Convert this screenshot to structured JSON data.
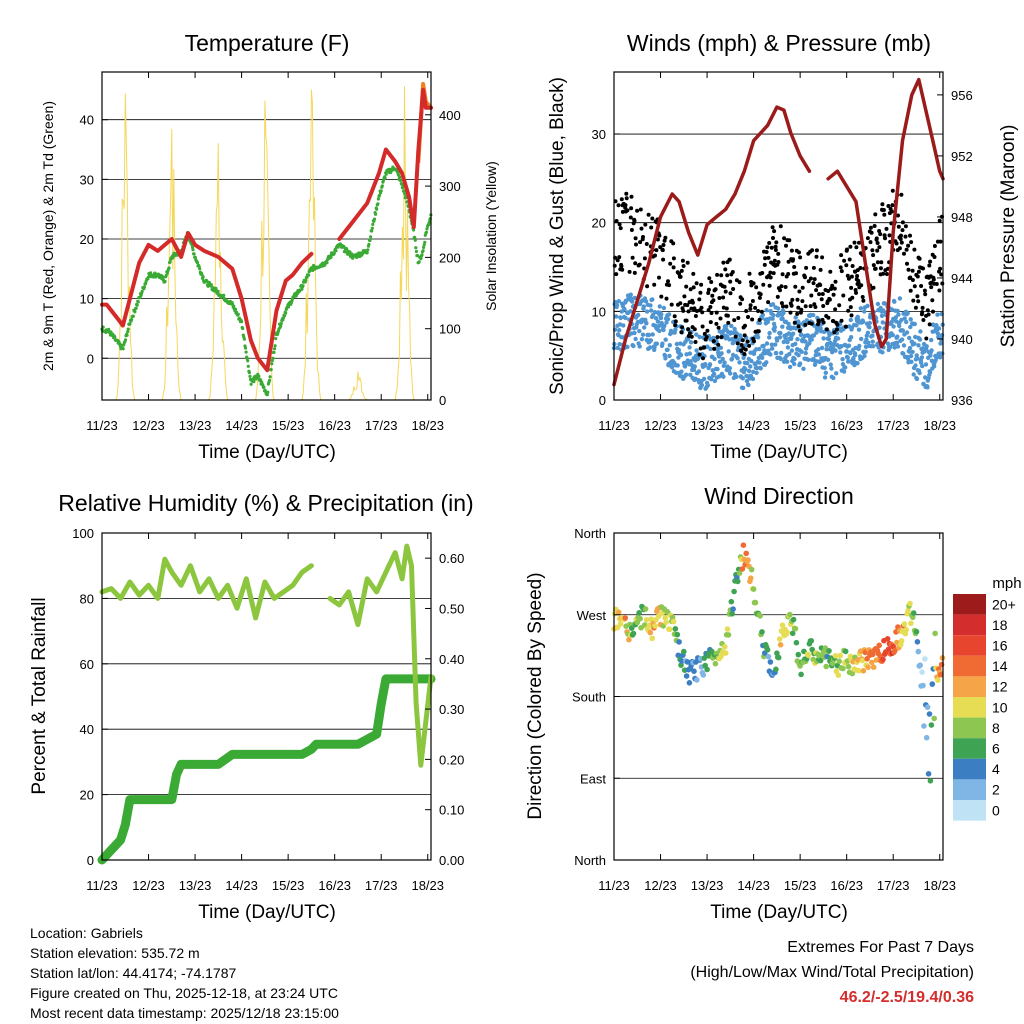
{
  "charts": [
    {
      "id": "temperature",
      "title": "Temperature (F)",
      "xlabel": "Time (Day/UTC)",
      "ylabel_left": "2m & 9m T (Red, Orange) & 2m Td (Green)",
      "ylabel_right": "Solar Insolation (Yellow)"
    },
    {
      "id": "winds",
      "title": "Winds (mph) & Pressure (mb)",
      "xlabel": "Time (Day/UTC)",
      "ylabel_left": "Sonic/Prop Wind & Gust (Blue, Black)",
      "ylabel_right": "Station Pressure (Maroon)"
    },
    {
      "id": "humidity",
      "title": "Relative Humidity (%) & Precipitation (in)",
      "xlabel": "Time (Day/UTC)",
      "ylabel_left": "Percent & Total Rainfall"
    },
    {
      "id": "direction",
      "title": "Wind Direction",
      "xlabel": "Time (Day/UTC)",
      "ylabel_left": "Direction (Colored By Speed)"
    }
  ],
  "chart_data": [
    {
      "type": "line",
      "title": "Temperature (F)",
      "xlabel": "Time (Day/UTC)",
      "ylabel": "2m & 9m T (Red, Orange) & 2m Td (Green)",
      "y2label": "Solar Insolation (Yellow)",
      "x_ticks": [
        "11/23",
        "12/23",
        "13/23",
        "14/23",
        "15/23",
        "16/23",
        "17/23",
        "18/23"
      ],
      "xlim": [
        11.0,
        18.07
      ],
      "ylim": [
        -7,
        48
      ],
      "y_ticks": [
        0,
        10,
        20,
        30,
        40
      ],
      "y2lim": [
        0,
        460
      ],
      "y2_ticks": [
        0,
        100,
        200,
        300,
        400
      ],
      "series": [
        {
          "name": "2m T",
          "color": "#d42a2a",
          "x": [
            11.0,
            11.1,
            11.3,
            11.45,
            11.6,
            11.8,
            12.0,
            12.2,
            12.35,
            12.5,
            12.7,
            12.85,
            13.0,
            13.2,
            13.5,
            13.8,
            14.0,
            14.2,
            14.35,
            14.55,
            14.75,
            14.95,
            15.1,
            15.3,
            15.5,
            15.8,
            16.1,
            16.4,
            16.7,
            16.95,
            17.1,
            17.3,
            17.45,
            17.6,
            17.7,
            17.8,
            17.9,
            17.96,
            18.07
          ],
          "y": [
            9,
            9,
            7,
            5.5,
            10,
            16,
            19,
            18,
            19,
            20,
            17,
            21,
            19,
            18,
            17,
            15,
            10,
            3,
            0,
            -2,
            8,
            13,
            14,
            16,
            17.5,
            null,
            20,
            23,
            26,
            31,
            35,
            33,
            31,
            27,
            22,
            35,
            45,
            42,
            42
          ]
        },
        {
          "name": "9m T",
          "color": "#f08020",
          "x": [
            17.8,
            17.9,
            17.96,
            18.07
          ],
          "y": [
            33,
            46,
            43,
            42
          ]
        },
        {
          "name": "2m Td",
          "color": "#3aaa35",
          "x": [
            11.0,
            11.15,
            11.3,
            11.45,
            11.6,
            11.8,
            12.0,
            12.2,
            12.35,
            12.5,
            12.7,
            12.85,
            13.0,
            13.2,
            13.5,
            13.8,
            14.0,
            14.2,
            14.35,
            14.55,
            14.75,
            14.95,
            15.1,
            15.3,
            15.5,
            15.8,
            16.1,
            16.4,
            16.7,
            16.95,
            17.1,
            17.3,
            17.45,
            17.6,
            17.7,
            17.8,
            17.9,
            17.96,
            18.07
          ],
          "y": [
            5,
            4.5,
            3,
            1.5,
            6,
            10,
            14,
            14,
            13,
            17,
            18,
            21,
            17,
            13,
            11,
            9,
            6,
            -4,
            -3,
            -6,
            4,
            8,
            10,
            12,
            15,
            16,
            19,
            17,
            18,
            27,
            31,
            32,
            29,
            25,
            21,
            16,
            18,
            21,
            24
          ]
        }
      ],
      "y2_series": {
        "name": "Solar Insolation",
        "color": "#f5d75a",
        "peaks": [
          {
            "day": 11.5,
            "value": 430
          },
          {
            "day": 12.5,
            "value": 380
          },
          {
            "day": 13.5,
            "value": 360
          },
          {
            "day": 14.5,
            "value": 420
          },
          {
            "day": 15.5,
            "value": 435
          },
          {
            "day": 16.5,
            "value": 40
          },
          {
            "day": 17.5,
            "value": 440
          }
        ]
      }
    },
    {
      "type": "scatter",
      "title": "Winds (mph) & Pressure (mb)",
      "xlabel": "Time (Day/UTC)",
      "ylabel": "Sonic/Prop Wind & Gust (Blue, Black)",
      "y2label": "Station Pressure (Maroon)",
      "x_ticks": [
        "11/23",
        "12/23",
        "13/23",
        "14/23",
        "15/23",
        "16/23",
        "17/23",
        "18/23"
      ],
      "xlim": [
        11.0,
        18.07
      ],
      "ylim": [
        0,
        37
      ],
      "y_ticks": [
        0,
        10,
        20,
        30
      ],
      "y2lim": [
        936,
        957.5
      ],
      "y2_ticks": [
        936,
        940,
        944,
        948,
        952,
        956
      ],
      "series": [
        {
          "name": "Wind",
          "color": "#4f95d1",
          "x": [
            11.0,
            11.3,
            11.6,
            12.0,
            12.3,
            12.6,
            12.9,
            13.2,
            13.5,
            13.8,
            14.1,
            14.4,
            14.7,
            15.0,
            15.3,
            15.6,
            15.9,
            16.2,
            16.5,
            16.8,
            17.1,
            17.4,
            17.7,
            18.07
          ],
          "y": [
            8,
            9,
            9,
            8,
            6,
            5,
            4,
            5,
            6,
            4,
            6,
            8,
            7,
            6,
            7,
            5,
            6,
            7,
            8,
            8,
            9,
            6,
            4,
            8
          ]
        },
        {
          "name": "Gust",
          "color": "#000000",
          "x": [
            11.0,
            11.3,
            11.6,
            12.0,
            12.3,
            12.6,
            12.9,
            13.2,
            13.5,
            13.8,
            14.1,
            14.4,
            14.7,
            15.0,
            15.3,
            15.6,
            15.9,
            16.2,
            16.5,
            16.8,
            17.1,
            17.4,
            17.7,
            18.07
          ],
          "y": [
            18,
            19,
            17,
            16,
            13,
            11,
            9,
            10,
            12,
            9,
            12,
            17,
            14,
            12,
            13,
            11,
            12,
            14,
            16,
            18,
            21,
            15,
            11,
            17
          ]
        },
        {
          "name": "Station Pressure",
          "color": "#9b1b1b",
          "x": [
            11.0,
            11.25,
            11.5,
            11.75,
            12.0,
            12.25,
            12.4,
            12.6,
            12.8,
            13.0,
            13.2,
            13.4,
            13.6,
            13.8,
            14.0,
            14.3,
            14.5,
            14.65,
            14.8,
            15.0,
            15.2,
            15.35,
            15.6,
            15.8,
            16.0,
            16.2,
            16.45,
            16.6,
            16.75,
            16.85,
            17.0,
            17.2,
            17.4,
            17.55,
            17.7,
            17.85,
            18.0,
            18.07
          ],
          "y": [
            937,
            940,
            942.5,
            945,
            948,
            949.5,
            949,
            947,
            945.5,
            947.5,
            948,
            948.5,
            949.5,
            951,
            953,
            954,
            955.2,
            955,
            953.5,
            952,
            951,
            null,
            950.5,
            951,
            950,
            949,
            944,
            941,
            939.5,
            940,
            947,
            953,
            956,
            957,
            955,
            953,
            951,
            950.5
          ]
        }
      ]
    },
    {
      "type": "line",
      "title": "Relative Humidity (%) & Precipitation (in)",
      "xlabel": "Time (Day/UTC)",
      "ylabel": "Percent & Total Rainfall",
      "x_ticks": [
        "11/23",
        "12/23",
        "13/23",
        "14/23",
        "15/23",
        "16/23",
        "17/23",
        "18/23"
      ],
      "xlim": [
        11.0,
        18.07
      ],
      "ylim": [
        0,
        100
      ],
      "y_ticks": [
        0,
        20,
        40,
        60,
        80,
        100
      ],
      "y2lim": [
        0,
        0.65
      ],
      "y2_ticks": [
        "0.00",
        "0.10",
        "0.20",
        "0.30",
        "0.40",
        "0.50",
        "0.60"
      ],
      "series": [
        {
          "name": "Relative Humidity",
          "color": "#8cc63f",
          "x": [
            11.0,
            11.2,
            11.4,
            11.6,
            11.8,
            12.0,
            12.2,
            12.35,
            12.5,
            12.7,
            12.9,
            13.1,
            13.3,
            13.5,
            13.7,
            13.9,
            14.1,
            14.3,
            14.5,
            14.7,
            14.9,
            15.1,
            15.3,
            15.5,
            15.7,
            15.9,
            16.1,
            16.3,
            16.5,
            16.7,
            16.9,
            17.1,
            17.3,
            17.45,
            17.55,
            17.65,
            17.75,
            17.85,
            18.07
          ],
          "y": [
            82,
            83,
            80,
            85,
            81,
            84,
            80,
            92,
            88,
            84,
            90,
            82,
            86,
            80,
            84,
            77,
            86,
            74,
            85,
            80,
            82,
            84,
            88,
            90,
            null,
            80,
            78,
            82,
            72,
            86,
            82,
            88,
            94,
            86,
            96,
            90,
            48,
            29,
            56
          ]
        },
        {
          "name": "Total Precipitation",
          "color": "#3aaa35",
          "axis": "y2",
          "x": [
            11.0,
            11.2,
            11.4,
            11.5,
            11.6,
            12.0,
            12.5,
            12.6,
            12.7,
            12.9,
            13.0,
            13.5,
            13.8,
            14.0,
            14.5,
            15.0,
            15.3,
            15.5,
            15.6,
            16.0,
            16.5,
            16.9,
            17.0,
            17.1,
            17.3,
            17.5,
            17.8,
            18.07
          ],
          "y": [
            0,
            0.02,
            0.04,
            0.07,
            0.12,
            0.12,
            0.12,
            0.17,
            0.19,
            0.19,
            0.19,
            0.19,
            0.21,
            0.21,
            0.21,
            0.21,
            0.21,
            0.22,
            0.23,
            0.23,
            0.23,
            0.25,
            0.31,
            0.36,
            0.36,
            0.36,
            0.36,
            0.36
          ]
        }
      ]
    },
    {
      "type": "scatter",
      "title": "Wind Direction",
      "xlabel": "Time (Day/UTC)",
      "ylabel": "Direction (Colored By Speed)",
      "x_ticks": [
        "11/23",
        "12/23",
        "13/23",
        "14/23",
        "15/23",
        "16/23",
        "17/23",
        "18/23"
      ],
      "xlim": [
        11.0,
        18.07
      ],
      "ylim": [
        0,
        360
      ],
      "y_ticks": [
        "North",
        "East",
        "South",
        "West",
        "North"
      ],
      "y_tick_values": [
        0,
        90,
        180,
        270,
        360
      ],
      "series": [
        {
          "name": "Direction",
          "x": [
            11.0,
            11.2,
            11.4,
            11.6,
            11.8,
            12.0,
            12.2,
            12.4,
            12.6,
            12.8,
            13.0,
            13.2,
            13.4,
            13.6,
            13.8,
            14.0,
            14.2,
            14.4,
            14.6,
            14.8,
            15.0,
            15.2,
            15.4,
            15.6,
            15.8,
            16.0,
            16.2,
            16.4,
            16.6,
            16.8,
            17.0,
            17.2,
            17.4,
            17.5,
            17.6,
            17.7,
            17.8,
            17.9,
            18.0,
            18.07
          ],
          "y": [
            265,
            260,
            250,
            270,
            255,
            270,
            265,
            230,
            205,
            210,
            220,
            225,
            240,
            300,
            340,
            300,
            240,
            200,
            250,
            270,
            215,
            230,
            225,
            220,
            215,
            220,
            215,
            220,
            225,
            230,
            240,
            250,
            275,
            240,
            200,
            160,
            120,
            200,
            205,
            215
          ],
          "speed": [
            10,
            12,
            8,
            6,
            12,
            10,
            9,
            6,
            4,
            3,
            5,
            8,
            10,
            4,
            14,
            8,
            6,
            3,
            10,
            8,
            6,
            8,
            7,
            6,
            8,
            9,
            10,
            12,
            14,
            15,
            16,
            12,
            10,
            6,
            2,
            2,
            4,
            8,
            14,
            12
          ]
        }
      ]
    }
  ],
  "colorbar": {
    "title": "mph",
    "labels": [
      "20+",
      "18",
      "16",
      "14",
      "12",
      "10",
      "8",
      "6",
      "4",
      "2",
      "0"
    ],
    "colors": [
      "#9e1b1b",
      "#d42d2d",
      "#e8452e",
      "#f06b33",
      "#f5a548",
      "#e6dd55",
      "#8dc752",
      "#3fa354",
      "#3b7fc2",
      "#7fb6e6",
      "#bfe2f5"
    ]
  },
  "info": {
    "location": "Location: Gabriels",
    "elevation": "Station elevation: 535.72 m",
    "latlon": "Station lat/lon: 44.4174; -74.1787",
    "created": "Figure created on Thu, 2025-12-18, at 23:24 UTC",
    "recent": "Most recent data timestamp: 2025/12/18 23:15:00"
  },
  "extremes": {
    "title": "Extremes For Past 7 Days",
    "subtitle": "(High/Low/Max Wind/Total Precipitation)",
    "values": "46.2/-2.5/19.4/0.36"
  }
}
